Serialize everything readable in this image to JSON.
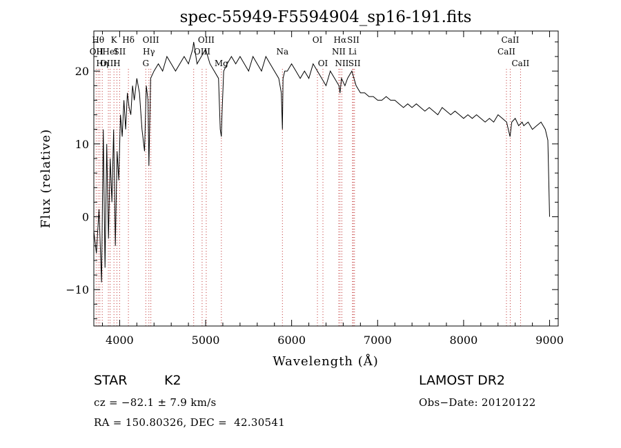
{
  "chart_data": {
    "type": "line",
    "title": "spec-55949-F5594904_sp16-191.fits",
    "xlabel": "Wavelength (Å)",
    "ylabel": "Flux (relative)",
    "xlim": [
      3700,
      9100
    ],
    "ylim": [
      -15,
      25.5
    ],
    "xticks": [
      4000,
      5000,
      6000,
      7000,
      8000,
      9000
    ],
    "yticks": [
      -10,
      0,
      10,
      20
    ],
    "grid": false,
    "series": [
      {
        "x": [
          3700,
          3730,
          3760,
          3790,
          3810,
          3830,
          3850,
          3870,
          3890,
          3910,
          3930,
          3950,
          3970,
          3990,
          4010,
          4030,
          4050,
          4070,
          4090,
          4110,
          4130,
          4150,
          4170,
          4200,
          4230,
          4260,
          4290,
          4310,
          4330,
          4340,
          4360,
          4400,
          4450,
          4500,
          4550,
          4600,
          4650,
          4700,
          4750,
          4800,
          4850,
          4861,
          4900,
          4950,
          5000,
          5050,
          5100,
          5150,
          5170,
          5183,
          5190,
          5210,
          5250,
          5300,
          5350,
          5400,
          5450,
          5500,
          5550,
          5600,
          5650,
          5700,
          5750,
          5800,
          5850,
          5880,
          5893,
          5900,
          5920,
          5950,
          6000,
          6050,
          6100,
          6150,
          6200,
          6250,
          6300,
          6350,
          6400,
          6450,
          6500,
          6550,
          6563,
          6580,
          6620,
          6650,
          6700,
          6750,
          6800,
          6850,
          6900,
          6950,
          7000,
          7050,
          7100,
          7150,
          7200,
          7250,
          7300,
          7350,
          7400,
          7450,
          7500,
          7550,
          7600,
          7650,
          7700,
          7750,
          7800,
          7850,
          7900,
          7950,
          8000,
          8050,
          8100,
          8150,
          8200,
          8250,
          8300,
          8350,
          8400,
          8450,
          8500,
          8540,
          8560,
          8600,
          8640,
          8680,
          8700,
          8750,
          8800,
          8850,
          8900,
          8950,
          8980,
          9000
        ],
        "y": [
          -2,
          -5,
          1,
          -9,
          12,
          -7,
          10,
          -3,
          8,
          2,
          12,
          -4,
          9,
          5,
          14,
          11,
          16,
          12,
          17,
          15,
          14,
          18,
          16,
          19,
          17,
          12,
          9,
          18,
          16,
          7,
          19,
          20,
          21,
          20,
          22,
          21,
          20,
          21,
          22,
          21,
          23,
          24,
          21,
          22,
          23,
          21,
          20,
          19,
          12,
          11,
          14,
          20,
          21,
          22,
          21,
          22,
          21,
          20,
          22,
          21,
          20,
          22,
          21,
          20,
          19,
          17,
          12,
          19,
          20,
          20,
          21,
          20,
          19,
          20,
          19,
          21,
          20,
          19,
          18,
          20,
          19,
          18,
          17,
          19,
          18,
          19,
          20,
          18,
          17,
          17,
          16.5,
          16.5,
          16,
          16,
          16.5,
          16,
          16,
          15.5,
          15,
          15.5,
          15,
          15.5,
          15,
          14.5,
          15,
          14.5,
          14,
          15,
          14.5,
          14,
          14.5,
          14,
          13.5,
          14,
          13.5,
          14,
          13.5,
          13,
          13.5,
          13,
          14,
          13.5,
          13,
          11,
          13,
          13.5,
          12.5,
          13,
          12.5,
          13,
          12,
          12.5,
          13,
          12,
          10.5,
          0
        ]
      }
    ],
    "lines": [
      {
        "x": 3727,
        "label": "OII",
        "row": 1
      },
      {
        "x": 3750,
        "label": "Hθ",
        "row": 0
      },
      {
        "x": 3770,
        "label": "H",
        "row": 1
      },
      {
        "x": 3798,
        "label": "Hη",
        "row": 2
      },
      {
        "x": 3869,
        "label": "OIII",
        "row": 2
      },
      {
        "x": 3889,
        "label": "HeI",
        "row": 1
      },
      {
        "x": 3934,
        "label": "K",
        "row": 0
      },
      {
        "x": 3968,
        "label": "H",
        "row": 2
      },
      {
        "x": 4000,
        "label": "SII",
        "row": 1
      },
      {
        "x": 4102,
        "label": "Hδ",
        "row": 0
      },
      {
        "x": 4304,
        "label": "G",
        "row": 2
      },
      {
        "x": 4340,
        "label": "Hγ",
        "row": 1
      },
      {
        "x": 4363,
        "label": "OIII",
        "row": 0
      },
      {
        "x": 4861,
        "label": "",
        "row": 0
      },
      {
        "x": 4959,
        "label": "OIII",
        "row": 1
      },
      {
        "x": 5007,
        "label": "OIII",
        "row": 0
      },
      {
        "x": 5183,
        "label": "Mg",
        "row": 2
      },
      {
        "x": 5893,
        "label": "Na",
        "row": 1
      },
      {
        "x": 6300,
        "label": "OI",
        "row": 0
      },
      {
        "x": 6364,
        "label": "OI",
        "row": 2
      },
      {
        "x": 6548,
        "label": "NII",
        "row": 1
      },
      {
        "x": 6563,
        "label": "Hα",
        "row": 0
      },
      {
        "x": 6584,
        "label": "NII",
        "row": 2
      },
      {
        "x": 6708,
        "label": "Li",
        "row": 1
      },
      {
        "x": 6717,
        "label": "SII",
        "row": 0
      },
      {
        "x": 6731,
        "label": "SII",
        "row": 2
      },
      {
        "x": 8498,
        "label": "CaII",
        "row": 1
      },
      {
        "x": 8542,
        "label": "CaII",
        "row": 0
      },
      {
        "x": 8662,
        "label": "CaII",
        "row": 2
      }
    ]
  },
  "info": {
    "class_label": "STAR",
    "subclass_label": "K2",
    "cz_text": "cz = −82.1 ± 7.9 km/s",
    "coords_text": "RA = 150.80326, DEC =  42.30541",
    "survey_label": "LAMOST DR2",
    "obs_date_text": "Obs−Date: 20120122"
  }
}
